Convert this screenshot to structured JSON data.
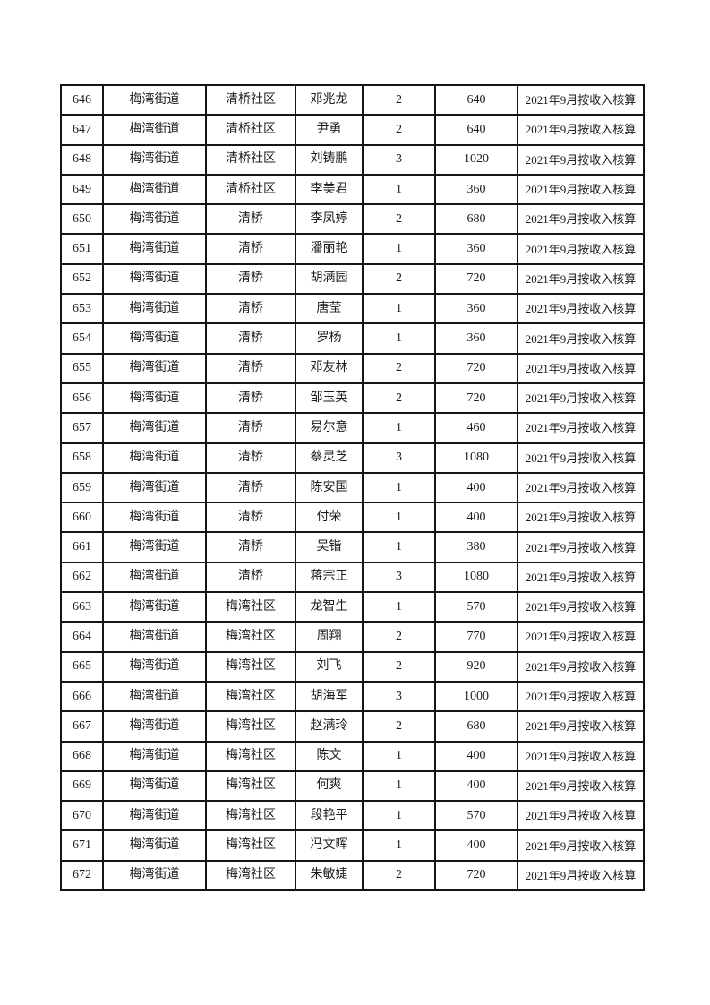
{
  "page": {
    "background": "#ffffff",
    "border_color": "#151515",
    "text_color": "#1c1c1c"
  },
  "table": {
    "columns": [
      {
        "key": 0,
        "name": "cell-row-number"
      },
      {
        "key": 1,
        "name": "cell-street-name"
      },
      {
        "key": 2,
        "name": "cell-community-name"
      },
      {
        "key": 3,
        "name": "cell-person-name"
      },
      {
        "key": 4,
        "name": "cell-member-count"
      },
      {
        "key": 5,
        "name": "cell-amount"
      },
      {
        "key": 6,
        "name": "cell-remark"
      }
    ],
    "rows": [
      [
        "646",
        "梅湾街道",
        "清桥社区",
        "邓兆龙",
        "2",
        "640",
        "2021年9月按收入核算"
      ],
      [
        "647",
        "梅湾街道",
        "清桥社区",
        "尹勇",
        "2",
        "640",
        "2021年9月按收入核算"
      ],
      [
        "648",
        "梅湾街道",
        "清桥社区",
        "刘铸鹏",
        "3",
        "1020",
        "2021年9月按收入核算"
      ],
      [
        "649",
        "梅湾街道",
        "清桥社区",
        "李美君",
        "1",
        "360",
        "2021年9月按收入核算"
      ],
      [
        "650",
        "梅湾街道",
        "清桥",
        "李凤婷",
        "2",
        "680",
        "2021年9月按收入核算"
      ],
      [
        "651",
        "梅湾街道",
        "清桥",
        "潘丽艳",
        "1",
        "360",
        "2021年9月按收入核算"
      ],
      [
        "652",
        "梅湾街道",
        "清桥",
        "胡满园",
        "2",
        "720",
        "2021年9月按收入核算"
      ],
      [
        "653",
        "梅湾街道",
        "清桥",
        "唐莹",
        "1",
        "360",
        "2021年9月按收入核算"
      ],
      [
        "654",
        "梅湾街道",
        "清桥",
        "罗杨",
        "1",
        "360",
        "2021年9月按收入核算"
      ],
      [
        "655",
        "梅湾街道",
        "清桥",
        "邓友林",
        "2",
        "720",
        "2021年9月按收入核算"
      ],
      [
        "656",
        "梅湾街道",
        "清桥",
        "邹玉英",
        "2",
        "720",
        "2021年9月按收入核算"
      ],
      [
        "657",
        "梅湾街道",
        "清桥",
        "易尔意",
        "1",
        "460",
        "2021年9月按收入核算"
      ],
      [
        "658",
        "梅湾街道",
        "清桥",
        "蔡灵芝",
        "3",
        "1080",
        "2021年9月按收入核算"
      ],
      [
        "659",
        "梅湾街道",
        "清桥",
        "陈安国",
        "1",
        "400",
        "2021年9月按收入核算"
      ],
      [
        "660",
        "梅湾街道",
        "清桥",
        "付荣",
        "1",
        "400",
        "2021年9月按收入核算"
      ],
      [
        "661",
        "梅湾街道",
        "清桥",
        "吴锴",
        "1",
        "380",
        "2021年9月按收入核算"
      ],
      [
        "662",
        "梅湾街道",
        "清桥",
        "蒋宗正",
        "3",
        "1080",
        "2021年9月按收入核算"
      ],
      [
        "663",
        "梅湾街道",
        "梅湾社区",
        "龙智生",
        "1",
        "570",
        "2021年9月按收入核算"
      ],
      [
        "664",
        "梅湾街道",
        "梅湾社区",
        "周翔",
        "2",
        "770",
        "2021年9月按收入核算"
      ],
      [
        "665",
        "梅湾街道",
        "梅湾社区",
        "刘飞",
        "2",
        "920",
        "2021年9月按收入核算"
      ],
      [
        "666",
        "梅湾街道",
        "梅湾社区",
        "胡海军",
        "3",
        "1000",
        "2021年9月按收入核算"
      ],
      [
        "667",
        "梅湾街道",
        "梅湾社区",
        "赵满玲",
        "2",
        "680",
        "2021年9月按收入核算"
      ],
      [
        "668",
        "梅湾街道",
        "梅湾社区",
        "陈文",
        "1",
        "400",
        "2021年9月按收入核算"
      ],
      [
        "669",
        "梅湾街道",
        "梅湾社区",
        "何爽",
        "1",
        "400",
        "2021年9月按收入核算"
      ],
      [
        "670",
        "梅湾街道",
        "梅湾社区",
        "段艳平",
        "1",
        "570",
        "2021年9月按收入核算"
      ],
      [
        "671",
        "梅湾街道",
        "梅湾社区",
        "冯文晖",
        "1",
        "400",
        "2021年9月按收入核算"
      ],
      [
        "672",
        "梅湾街道",
        "梅湾社区",
        "朱敏婕",
        "2",
        "720",
        "2021年9月按收入核算"
      ]
    ]
  }
}
